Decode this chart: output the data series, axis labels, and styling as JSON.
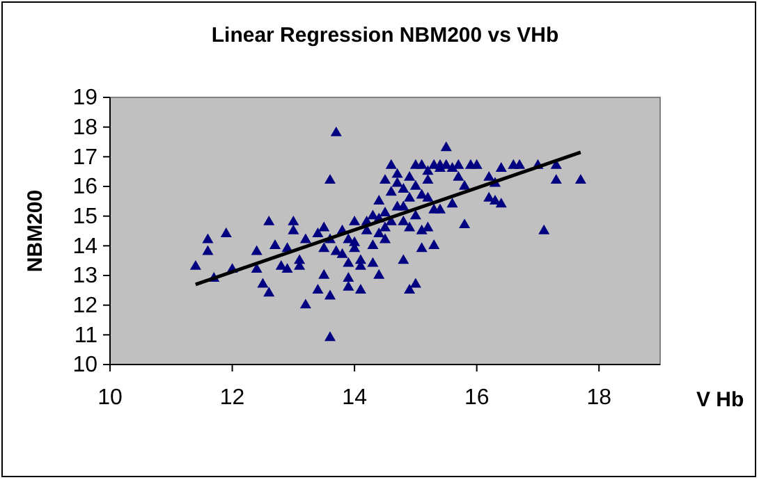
{
  "chart_data": {
    "type": "scatter",
    "title": "Linear Regression NBM200 vs VHb",
    "xlabel": "V Hb",
    "ylabel": "NBM200",
    "xlim": [
      10,
      19
    ],
    "xticks": [
      10,
      12,
      14,
      16,
      18
    ],
    "ylim": [
      10,
      19
    ],
    "yticks": [
      10,
      11,
      12,
      13,
      14,
      15,
      16,
      17,
      18,
      19
    ],
    "grid": false,
    "marker": "triangle",
    "series": [
      {
        "color": "#000080",
        "x": [
          11.4,
          11.6,
          11.6,
          11.7,
          11.9,
          12.0,
          12.4,
          12.4,
          12.5,
          12.6,
          12.6,
          12.7,
          12.8,
          12.9,
          12.9,
          13.0,
          13.0,
          13.1,
          13.1,
          13.2,
          13.2,
          13.4,
          13.4,
          13.5,
          13.5,
          13.5,
          13.6,
          13.6,
          13.6,
          13.7,
          13.6,
          13.7,
          13.8,
          13.8,
          13.9,
          13.9,
          13.9,
          13.9,
          14.0,
          14.0,
          14.0,
          14.1,
          14.1,
          14.1,
          14.2,
          14.2,
          14.3,
          14.3,
          14.3,
          14.4,
          14.4,
          14.4,
          14.4,
          14.5,
          14.5,
          14.5,
          14.5,
          14.6,
          14.6,
          14.6,
          14.7,
          14.7,
          14.7,
          14.8,
          14.8,
          14.8,
          14.8,
          14.9,
          14.9,
          14.9,
          14.9,
          15.0,
          15.0,
          15.0,
          15.0,
          15.1,
          15.1,
          15.1,
          15.1,
          15.2,
          15.2,
          15.2,
          15.2,
          15.3,
          15.3,
          15.3,
          15.4,
          15.4,
          15.4,
          15.5,
          15.5,
          15.6,
          15.6,
          15.7,
          15.7,
          15.8,
          15.8,
          15.9,
          16.0,
          16.2,
          16.2,
          16.3,
          16.3,
          16.4,
          16.4,
          16.6,
          16.7,
          17.0,
          17.1,
          17.3,
          17.3,
          17.7
        ],
        "values": [
          13.3,
          13.8,
          14.2,
          12.9,
          14.4,
          13.2,
          13.8,
          13.2,
          12.7,
          12.4,
          14.8,
          14.0,
          13.3,
          13.2,
          13.9,
          14.8,
          14.5,
          13.5,
          13.3,
          12.0,
          14.2,
          14.4,
          12.5,
          13.0,
          13.9,
          14.6,
          12.3,
          16.2,
          10.9,
          17.8,
          14.2,
          13.8,
          13.7,
          14.5,
          13.4,
          12.9,
          12.6,
          14.2,
          14.8,
          13.9,
          14.1,
          13.5,
          12.5,
          13.3,
          14.8,
          14.5,
          15.0,
          14.0,
          13.4,
          15.5,
          14.9,
          14.4,
          13.0,
          14.6,
          15.1,
          16.2,
          14.2,
          16.7,
          15.8,
          14.8,
          15.3,
          16.4,
          16.1,
          13.5,
          14.8,
          15.9,
          15.3,
          12.5,
          16.3,
          15.6,
          14.6,
          16.7,
          12.7,
          16.0,
          15.0,
          16.7,
          14.5,
          13.9,
          15.7,
          16.5,
          15.6,
          14.6,
          16.2,
          16.7,
          15.2,
          14.0,
          16.7,
          15.2,
          16.6,
          17.3,
          16.7,
          16.6,
          15.4,
          16.3,
          16.7,
          16.0,
          14.7,
          16.7,
          16.7,
          15.6,
          16.3,
          15.5,
          16.1,
          16.6,
          15.4,
          16.7,
          16.7,
          16.7,
          14.5,
          16.2,
          16.7,
          16.2
        ]
      },
      {
        "type": "line",
        "color": "#000000",
        "x": [
          11.4,
          17.7
        ],
        "values": [
          12.7,
          17.15
        ],
        "marker": "none"
      }
    ]
  }
}
